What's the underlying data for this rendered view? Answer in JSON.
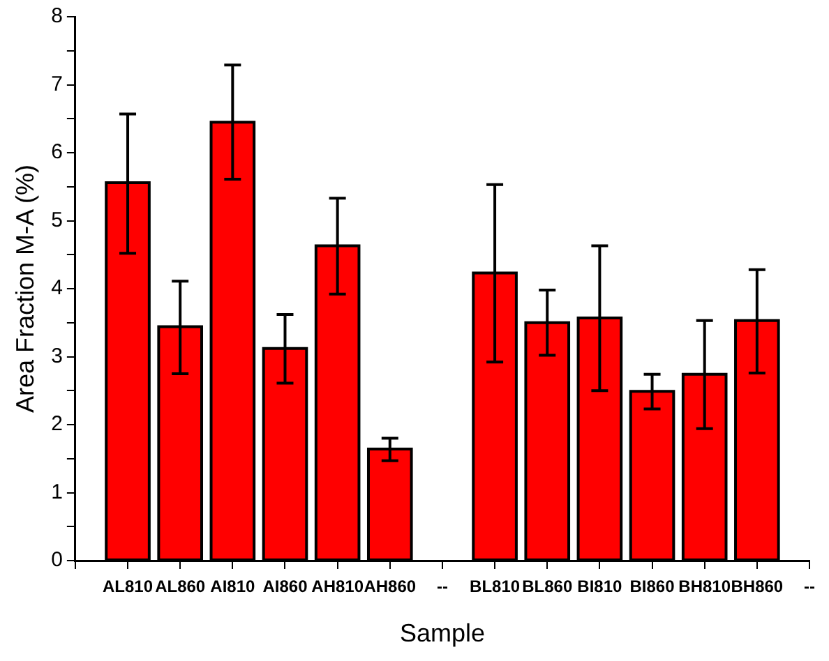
{
  "chart_data": {
    "type": "bar",
    "xlabel": "Sample",
    "ylabel": "Area Fraction M-A (%)",
    "categories": [
      null,
      "AL810",
      "AL860",
      "AI810",
      "AI860",
      "AH810",
      "AH860",
      "--",
      "BL810",
      "BL860",
      "BI810",
      "BI860",
      "BH810",
      "BH860",
      "--"
    ],
    "values": [
      null,
      5.56,
      3.44,
      6.45,
      3.12,
      4.63,
      1.64,
      null,
      4.23,
      3.5,
      3.57,
      2.49,
      2.74,
      3.53,
      null
    ],
    "errors": [
      null,
      [
        4.52,
        6.57
      ],
      [
        2.75,
        4.11
      ],
      [
        5.61,
        7.29
      ],
      [
        2.61,
        3.62
      ],
      [
        3.92,
        5.33
      ],
      [
        1.47,
        1.8
      ],
      null,
      [
        2.92,
        5.53
      ],
      [
        3.02,
        3.98
      ],
      [
        2.5,
        4.63
      ],
      [
        2.23,
        2.74
      ],
      [
        1.94,
        3.53
      ],
      [
        2.76,
        4.28
      ],
      null
    ],
    "color": "#ff0000",
    "ylim": [
      0,
      8
    ],
    "yticks": [
      0,
      {
        "value": 0.5,
        "label": null
      },
      1,
      {
        "value": 1.5,
        "label": null
      },
      2,
      {
        "value": 2.5,
        "label": null
      },
      3,
      {
        "value": 3.5,
        "label": null
      },
      4,
      {
        "value": 4.5,
        "label": null
      },
      5,
      {
        "value": 5.5,
        "label": null
      },
      6,
      {
        "value": 6.5,
        "label": null
      },
      7,
      {
        "value": 7.5,
        "label": null
      },
      8
    ],
    "grid": false,
    "legend": false
  }
}
